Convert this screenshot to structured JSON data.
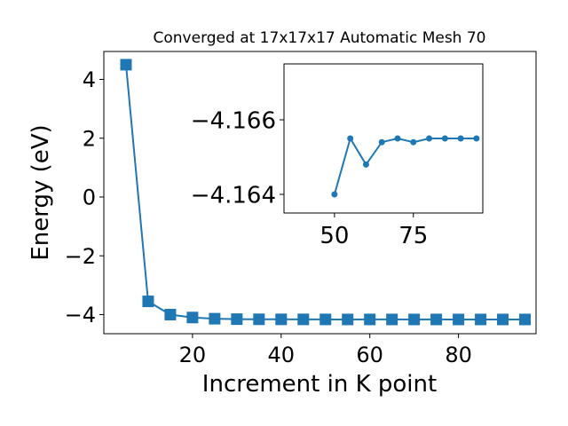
{
  "chart_data": [
    {
      "type": "line",
      "title": "Converged at 17x17x17 Automatic Mesh 70",
      "xlabel": "Increment in K point",
      "ylabel": "Energy (eV)",
      "xlim": [
        0,
        97.5
      ],
      "ylim": [
        -4.65,
        4.95
      ],
      "xticks": [
        20,
        40,
        60,
        80
      ],
      "yticks": [
        -4,
        -2,
        0,
        2,
        4
      ],
      "xtick_labels": [
        "20",
        "40",
        "60",
        "80"
      ],
      "ytick_labels": [
        "−4",
        "−2",
        "0",
        "2",
        "4"
      ],
      "grid": false,
      "marker": "square",
      "color": "#1f77b4",
      "series": [
        {
          "x": [
            5,
            10,
            15,
            20,
            25,
            30,
            35,
            40,
            45,
            50,
            55,
            60,
            65,
            70,
            75,
            80,
            85,
            90,
            95
          ],
          "y": [
            4.5,
            -3.55,
            -4.0,
            -4.1,
            -4.14,
            -4.155,
            -4.16,
            -4.162,
            -4.163,
            -4.164,
            -4.1655,
            -4.1648,
            -4.1654,
            -4.1655,
            -4.1654,
            -4.1655,
            -4.1655,
            -4.1655,
            -4.1655
          ]
        }
      ]
    },
    {
      "type": "line",
      "title": "",
      "xlabel": "",
      "ylabel": "",
      "inset": true,
      "xlim": [
        34,
        97
      ],
      "ylim": [
        -4.1635,
        -4.1675
      ],
      "xticks": [
        50,
        75
      ],
      "yticks": [
        -4.166,
        -4.164
      ],
      "xtick_labels": [
        "50",
        "75"
      ],
      "ytick_labels": [
        "−4.166",
        "−4.164"
      ],
      "grid": false,
      "marker": "circle",
      "color": "#1f77b4",
      "series": [
        {
          "x": [
            50,
            55,
            60,
            65,
            70,
            75,
            80,
            85,
            90,
            95
          ],
          "y": [
            -4.164,
            -4.1655,
            -4.1648,
            -4.1654,
            -4.1655,
            -4.1654,
            -4.1655,
            -4.1655,
            -4.1655,
            -4.1655
          ]
        }
      ]
    }
  ]
}
